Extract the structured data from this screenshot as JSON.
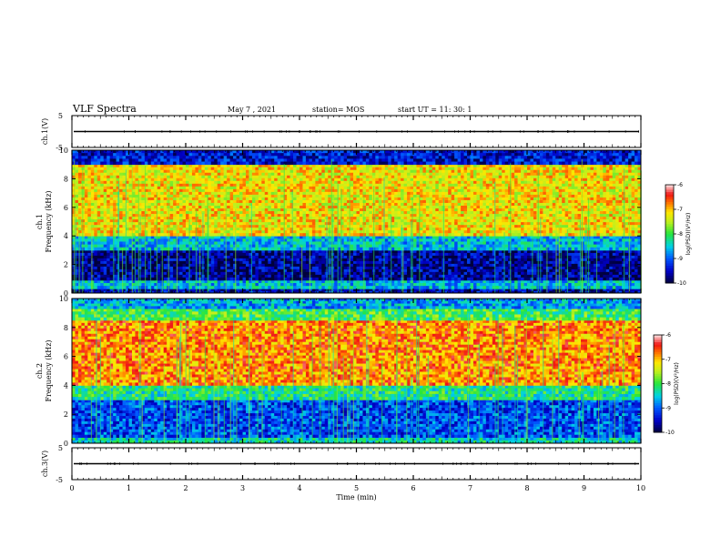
{
  "header": {
    "title": "VLF Spectra",
    "date": "May 7 , 2021",
    "station": "station= MOS",
    "start": "start UT =  11: 30: 1"
  },
  "chart_data": [
    {
      "type": "line",
      "panel": "ch1-waveform",
      "ylabel": "ch.1(V)",
      "yticks": [
        "5",
        "-5"
      ],
      "ylim": [
        -5,
        5
      ],
      "xlim": [
        0,
        10
      ],
      "trace_level": 0
    },
    {
      "type": "heatmap",
      "panel": "ch1-spectrogram",
      "ylabel_line1": "ch.1",
      "ylabel_line2": "Frequency (kHz)",
      "yticks": [
        "0",
        "2",
        "4",
        "6",
        "8",
        "10"
      ],
      "ylim": [
        0,
        10
      ],
      "xlim": [
        0,
        10
      ],
      "colorbar": {
        "label": "log(PSD)(V²/Hz)",
        "ticks": [
          "-6",
          "-7",
          "-8",
          "-9",
          "-10"
        ],
        "range": [
          -10,
          -6
        ]
      },
      "bands": [
        {
          "freq_range": [
            0,
            0.3
          ],
          "level": -9.6
        },
        {
          "freq_range": [
            0.3,
            0.9
          ],
          "level": -8.6
        },
        {
          "freq_range": [
            0.9,
            3.0
          ],
          "level": -9.7
        },
        {
          "freq_range": [
            3.0,
            4.0
          ],
          "level": -8.6
        },
        {
          "freq_range": [
            4.0,
            9.0
          ],
          "level": -7.2
        },
        {
          "freq_range": [
            9.0,
            10
          ],
          "level": -9.4
        }
      ]
    },
    {
      "type": "heatmap",
      "panel": "ch2-spectrogram",
      "ylabel_line1": "ch.2",
      "ylabel_line2": "Frequency (kHz)",
      "yticks": [
        "0",
        "2",
        "4",
        "6",
        "8",
        "10"
      ],
      "ylim": [
        0,
        10
      ],
      "xlim": [
        0,
        10
      ],
      "colorbar": {
        "label": "log(PSD)(V²/Hz)",
        "ticks": [
          "-6",
          "-7",
          "-8",
          "-9",
          "-10"
        ],
        "range": [
          -10,
          -6
        ]
      },
      "bands": [
        {
          "freq_range": [
            0,
            0.4
          ],
          "level": -8.4
        },
        {
          "freq_range": [
            0.4,
            3.0
          ],
          "level": -9.1
        },
        {
          "freq_range": [
            3.0,
            4.0
          ],
          "level": -8.2
        },
        {
          "freq_range": [
            4.0,
            8.5
          ],
          "level": -6.8
        },
        {
          "freq_range": [
            8.5,
            9.3
          ],
          "level": -8.0
        },
        {
          "freq_range": [
            9.3,
            10
          ],
          "level": -8.7
        }
      ]
    },
    {
      "type": "line",
      "panel": "ch3-waveform",
      "ylabel": "ch.3(V)",
      "yticks": [
        "5",
        "-5"
      ],
      "ylim": [
        -5,
        5
      ],
      "xlim": [
        0,
        10
      ],
      "trace_level": 0,
      "xlabel": "Time (min)",
      "xticks": [
        "0",
        "1",
        "2",
        "3",
        "4",
        "5",
        "6",
        "7",
        "8",
        "9",
        "10"
      ]
    }
  ]
}
